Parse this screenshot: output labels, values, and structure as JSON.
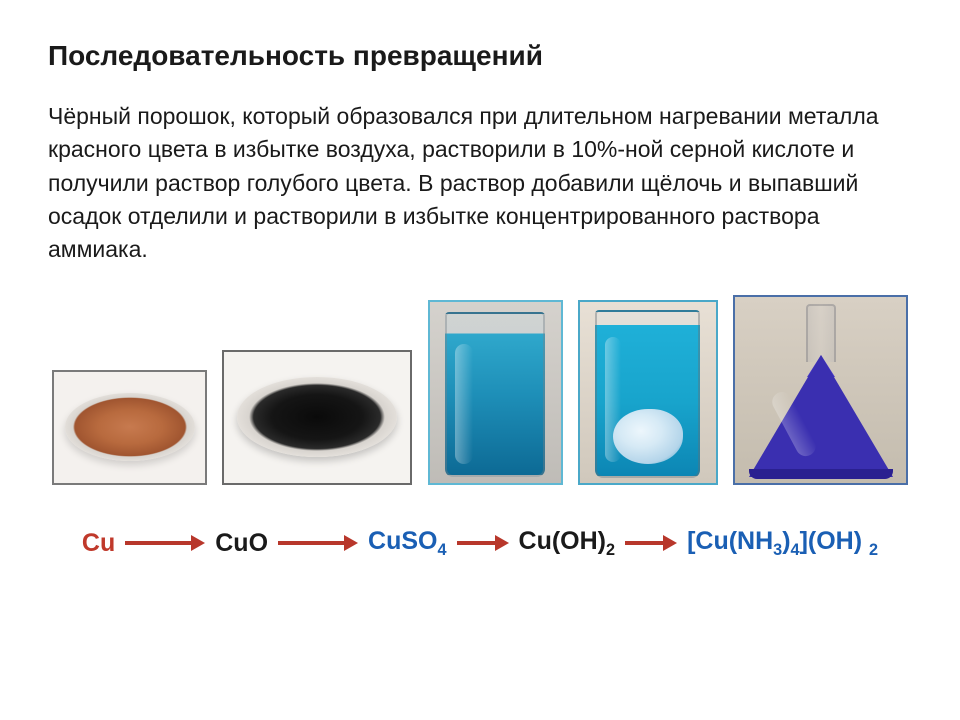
{
  "title": "Последовательность превращений",
  "description": "Чёрный порошок, который образовался при длительном нагревании металла красного цвета в избытке воздуха, растворили в 10%-ной серной кислоте и получили раствор голубого цвета. В раствор добавили щёлочь и выпавший осадок отделили и растворили в избытке концентрированного раствора аммиака.",
  "equation": {
    "step1": "Cu",
    "step2": "CuO",
    "step3_base": "CuSO",
    "step3_sub": "4",
    "step4_base": "Cu(OH)",
    "step4_sub": "2",
    "step5_open": "[Cu(NH",
    "step5_sub1": "3",
    "step5_mid": ")",
    "step5_sub2": "4",
    "step5_close": "](OH)",
    "step5_sub3": "2"
  },
  "colors": {
    "title_color": "#1a1a1a",
    "text_color": "#1a1a1a",
    "cu_color": "#c0392b",
    "formula_blue": "#1a5fb4",
    "formula_dark": "#1a1a1a",
    "arrow_color": "#b8372b",
    "background": "#ffffff"
  },
  "images": [
    {
      "name": "copper-powder-dish",
      "border": "#7a7a7a",
      "desc": "red copper powder in petri dish"
    },
    {
      "name": "black-powder-dish",
      "border": "#6a6a6a",
      "desc": "black CuO powder in petri dish"
    },
    {
      "name": "blue-solution-beaker",
      "border": "#5fb8d4",
      "desc": "blue CuSO4 solution in beaker"
    },
    {
      "name": "precipitate-beaker",
      "border": "#4aa8c8",
      "desc": "blue solution with light blue precipitate"
    },
    {
      "name": "violet-flask",
      "border": "#4a6fa8",
      "desc": "deep violet-blue ammonia complex in conical flask"
    }
  ],
  "typography": {
    "title_fontsize": 28,
    "body_fontsize": 23,
    "equation_fontsize": 25,
    "font_family": "Arial"
  }
}
